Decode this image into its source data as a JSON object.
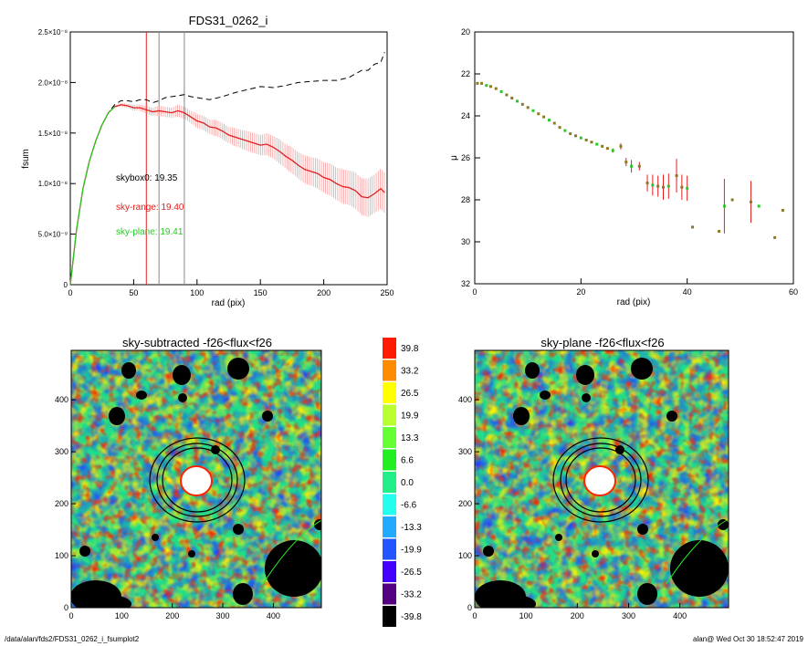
{
  "panels": {
    "top_left_title": "FDS31_0262_i",
    "top_left_xlabel": "rad (pix)",
    "top_left_ylabel": "fsum",
    "top_right_xlabel": "rad (pix)",
    "top_right_ylabel": "μ",
    "bottom_left_title": "sky-subtracted -f26<flux<f26",
    "bottom_right_title": "sky-plane -f26<flux<f26"
  },
  "annotations": {
    "skybox": "skybox0: 19.35",
    "skyrange": "sky-range: 19.40",
    "skyplane": "sky-plane: 19.41"
  },
  "footer": {
    "left": "/data/alan/fds2/FDS31_0262_i_fsumplot2",
    "right": "alan@  Wed Oct 30 18:52:47 2019"
  },
  "colors": {
    "red": "#e02020",
    "pink": "#f4a0a0",
    "green": "#22cc22",
    "olive": "#8a7a20",
    "gray": "#888888"
  },
  "chart_data": [
    {
      "type": "line",
      "title": "FDS31_0262_i",
      "xlabel": "rad (pix)",
      "ylabel": "fsum",
      "xlim": [
        0,
        250
      ],
      "ylim": [
        0,
        2.5e-08
      ],
      "xticks": [
        "0",
        "50",
        "100",
        "150",
        "200",
        "250"
      ],
      "yticks": [
        "0",
        "5.0×10⁻⁹",
        "1.0×10⁻⁸",
        "1.5×10⁻⁸",
        "2.0×10⁻⁸",
        "2.5×10⁻⁸"
      ],
      "vertical_lines": [
        {
          "x": 60,
          "color": "red"
        },
        {
          "x": 70,
          "color": "gray"
        },
        {
          "x": 90,
          "color": "gray"
        }
      ],
      "series": [
        {
          "style": "dashed-black",
          "x": [
            0,
            5,
            10,
            15,
            20,
            25,
            30,
            35,
            40,
            45,
            50,
            55,
            60,
            65,
            70,
            75,
            80,
            85,
            90,
            95,
            100,
            110,
            120,
            130,
            140,
            150,
            160,
            170,
            180,
            190,
            200,
            210,
            220,
            230,
            235,
            240,
            245,
            248
          ],
          "y": [
            0,
            5.5e-09,
            9.5e-09,
            1.22e-08,
            1.42e-08,
            1.58e-08,
            1.7e-08,
            1.78e-08,
            1.82e-08,
            1.82e-08,
            1.81e-08,
            1.83e-08,
            1.83e-08,
            1.8e-08,
            1.82e-08,
            1.85e-08,
            1.86e-08,
            1.87e-08,
            1.88e-08,
            1.86e-08,
            1.85e-08,
            1.83e-08,
            1.86e-08,
            1.9e-08,
            1.93e-08,
            1.96e-08,
            1.95e-08,
            1.97e-08,
            2e-08,
            2.01e-08,
            2.02e-08,
            2.02e-08,
            2.05e-08,
            2.12e-08,
            2.12e-08,
            2.18e-08,
            2.2e-08,
            2.3e-08
          ]
        },
        {
          "style": "red-with-errors",
          "x": [
            0,
            5,
            10,
            15,
            20,
            25,
            30,
            35,
            40,
            45,
            50,
            55,
            60,
            65,
            70,
            75,
            80,
            85,
            90,
            95,
            100,
            105,
            110,
            115,
            120,
            125,
            130,
            135,
            140,
            145,
            150,
            155,
            160,
            165,
            170,
            175,
            180,
            185,
            190,
            195,
            200,
            205,
            210,
            215,
            220,
            225,
            230,
            235,
            240,
            245,
            248
          ],
          "y": [
            0,
            5.5e-09,
            9.5e-09,
            1.22e-08,
            1.42e-08,
            1.58e-08,
            1.7e-08,
            1.76e-08,
            1.78e-08,
            1.77e-08,
            1.75e-08,
            1.75e-08,
            1.73e-08,
            1.71e-08,
            1.72e-08,
            1.71e-08,
            1.7e-08,
            1.72e-08,
            1.7e-08,
            1.66e-08,
            1.62e-08,
            1.6e-08,
            1.56e-08,
            1.55e-08,
            1.52e-08,
            1.48e-08,
            1.46e-08,
            1.44e-08,
            1.42e-08,
            1.4e-08,
            1.38e-08,
            1.39e-08,
            1.36e-08,
            1.32e-08,
            1.27e-08,
            1.23e-08,
            1.18e-08,
            1.14e-08,
            1.12e-08,
            1.1e-08,
            1.06e-08,
            1.04e-08,
            1e-08,
            9.7e-09,
            9.6e-09,
            9.3e-09,
            8.7e-09,
            8.6e-09,
            9e-09,
            9.5e-09,
            9.1e-09
          ],
          "err": [
            0,
            0,
            0,
            0,
            0,
            0,
            0,
            1e-10,
            2e-10,
            2e-10,
            3e-10,
            3e-10,
            4e-10,
            4e-10,
            5e-10,
            5e-10,
            5e-10,
            6e-10,
            6e-10,
            6e-10,
            7e-10,
            7e-10,
            7e-10,
            8e-10,
            8e-10,
            8e-10,
            9e-10,
            9e-10,
            1e-09,
            1e-09,
            1e-09,
            1.1e-09,
            1.1e-09,
            1.2e-09,
            1.2e-09,
            1.3e-09,
            1.3e-09,
            1.4e-09,
            1.4e-09,
            1.5e-09,
            1.5e-09,
            1.6e-09,
            1.6e-09,
            1.7e-09,
            1.7e-09,
            1.8e-09,
            1.8e-09,
            1.9e-09,
            1.9e-09,
            2e-09,
            2e-09
          ]
        }
      ]
    },
    {
      "type": "scatter",
      "xlabel": "rad (pix)",
      "ylabel": "μ",
      "xlim": [
        0,
        60
      ],
      "ylim": [
        32,
        20
      ],
      "xticks": [
        "0",
        "20",
        "40",
        "60"
      ],
      "yticks": [
        "20",
        "22",
        "24",
        "26",
        "28",
        "30",
        "32"
      ],
      "x": [
        0.5,
        1.3,
        2.2,
        3.0,
        4.0,
        5.0,
        6.0,
        7.0,
        8.0,
        9.0,
        10.0,
        11.0,
        12.0,
        13.0,
        14.0,
        15.0,
        16.0,
        17.0,
        18.0,
        19.0,
        20.0,
        21.0,
        22.0,
        23.0,
        24.0,
        25.0,
        26.0,
        27.5,
        28.5,
        29.5,
        31.0,
        32.5,
        33.5,
        34.5,
        35.5,
        36.5,
        38.0,
        39.0,
        40.0,
        41.0,
        46.0,
        47.0,
        48.5,
        52.0,
        53.5,
        56.5,
        58.0
      ],
      "y": [
        22.45,
        22.45,
        22.55,
        22.6,
        22.7,
        22.85,
        23.0,
        23.15,
        23.3,
        23.45,
        23.6,
        23.75,
        23.9,
        24.05,
        24.2,
        24.35,
        24.55,
        24.7,
        24.85,
        24.95,
        25.05,
        25.15,
        25.25,
        25.35,
        25.45,
        25.55,
        25.65,
        25.45,
        26.2,
        26.4,
        26.4,
        27.2,
        27.3,
        27.35,
        27.4,
        27.35,
        26.85,
        27.4,
        27.45,
        29.3,
        29.5,
        28.3,
        28.0,
        28.1,
        28.3,
        29.8,
        28.5
      ],
      "err": [
        0,
        0,
        0,
        0,
        0,
        0,
        0,
        0,
        0,
        0,
        0,
        0,
        0,
        0,
        0,
        0,
        0,
        0,
        0,
        0,
        0,
        0,
        0,
        0,
        0,
        0,
        0.1,
        0.15,
        0.2,
        0.3,
        0.2,
        0.4,
        0.5,
        0.5,
        0.6,
        0.6,
        0.8,
        0.6,
        0.6,
        0,
        0,
        1.3,
        0,
        1.0,
        0,
        0,
        0
      ]
    },
    {
      "type": "heatmap",
      "title": "sky-subtracted -f26<flux<f26",
      "xlim": [
        0,
        495
      ],
      "ylim": [
        0,
        495
      ],
      "xticks": [
        "0",
        "100",
        "200",
        "300",
        "400"
      ],
      "yticks": [
        "0",
        "100",
        "200",
        "300",
        "400"
      ],
      "ellipses_center": [
        232,
        220
      ]
    },
    {
      "type": "heatmap",
      "title": "sky-plane -f26<flux<f26",
      "xlim": [
        0,
        495
      ],
      "ylim": [
        0,
        495
      ],
      "xticks": [
        "0",
        "100",
        "200",
        "300",
        "400"
      ],
      "yticks": [
        "0",
        "100",
        "200",
        "300",
        "400"
      ],
      "ellipses_center": [
        232,
        220
      ]
    },
    {
      "type": "colorbar",
      "labels": [
        "39.8",
        "33.2",
        "26.5",
        "19.9",
        "13.3",
        "6.6",
        "0.0",
        "-6.6",
        "-13.3",
        "-19.9",
        "-26.5",
        "-33.2",
        "-39.8"
      ],
      "colors": [
        "#ff1a00",
        "#ff8c00",
        "#ffff00",
        "#b8ff30",
        "#66ff33",
        "#22ee22",
        "#22ee88",
        "#22ffee",
        "#22aaff",
        "#2255ff",
        "#4400ff",
        "#550080",
        "#000000"
      ]
    }
  ]
}
